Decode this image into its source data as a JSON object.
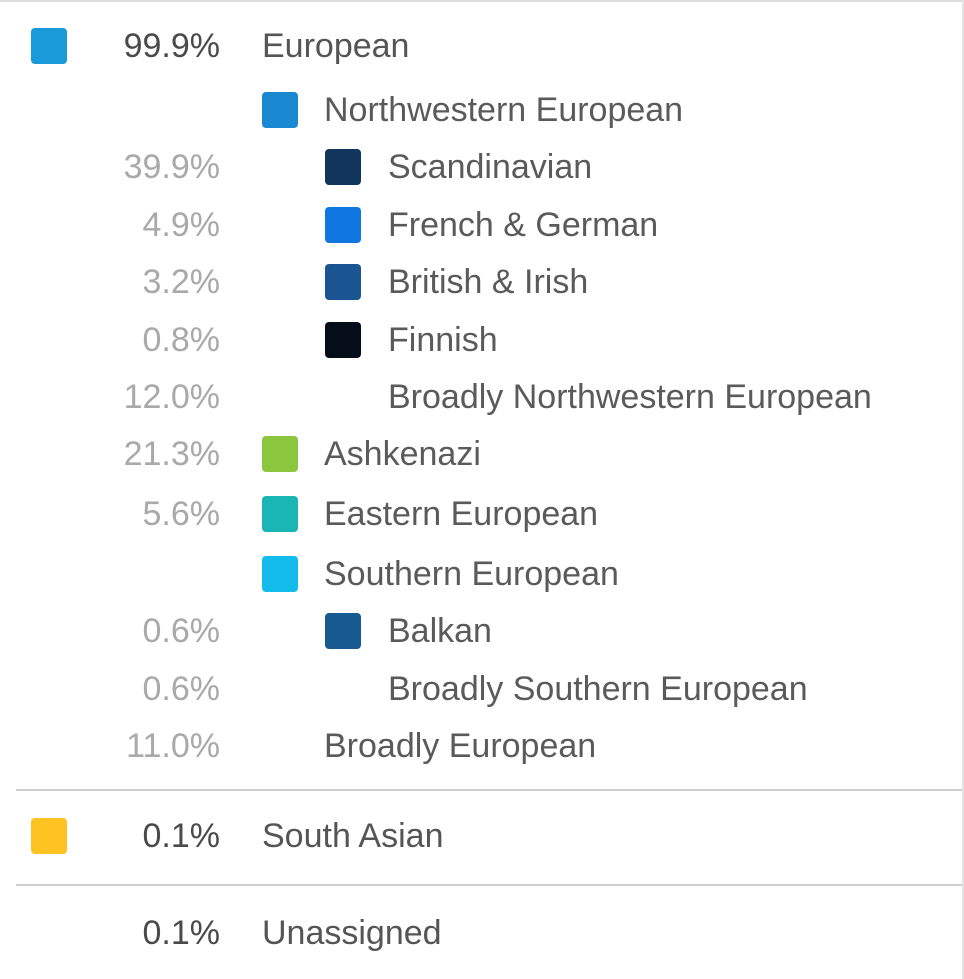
{
  "groups": {
    "european": {
      "percent": "99.9%",
      "label": "European",
      "color": "#1a9ad8",
      "northwestern": {
        "label": "Northwestern European",
        "color": "#1a88d0",
        "subregions": [
          {
            "percent": "39.9%",
            "label": "Scandinavian",
            "color": "#12365b"
          },
          {
            "percent": "4.9%",
            "label": "French & German",
            "color": "#1177e0"
          },
          {
            "percent": "3.2%",
            "label": "British & Irish",
            "color": "#1b5591"
          },
          {
            "percent": "0.8%",
            "label": "Finnish",
            "color": "#050d18"
          },
          {
            "percent": "12.0%",
            "label": "Broadly Northwestern European"
          }
        ]
      },
      "ashkenazi": {
        "percent": "21.3%",
        "label": "Ashkenazi",
        "color": "#8cc63f"
      },
      "eastern": {
        "percent": "5.6%",
        "label": "Eastern European",
        "color": "#1ab6b4"
      },
      "southern": {
        "label": "Southern European",
        "color": "#14bcec",
        "subregions": [
          {
            "percent": "0.6%",
            "label": "Balkan",
            "color": "#165a91"
          },
          {
            "percent": "0.6%",
            "label": "Broadly Southern European"
          }
        ]
      },
      "broadly": {
        "percent": "11.0%",
        "label": "Broadly European"
      }
    },
    "south_asian": {
      "percent": "0.1%",
      "label": "South Asian",
      "color": "#fec323"
    },
    "unassigned": {
      "percent": "0.1%",
      "label": "Unassigned"
    }
  }
}
